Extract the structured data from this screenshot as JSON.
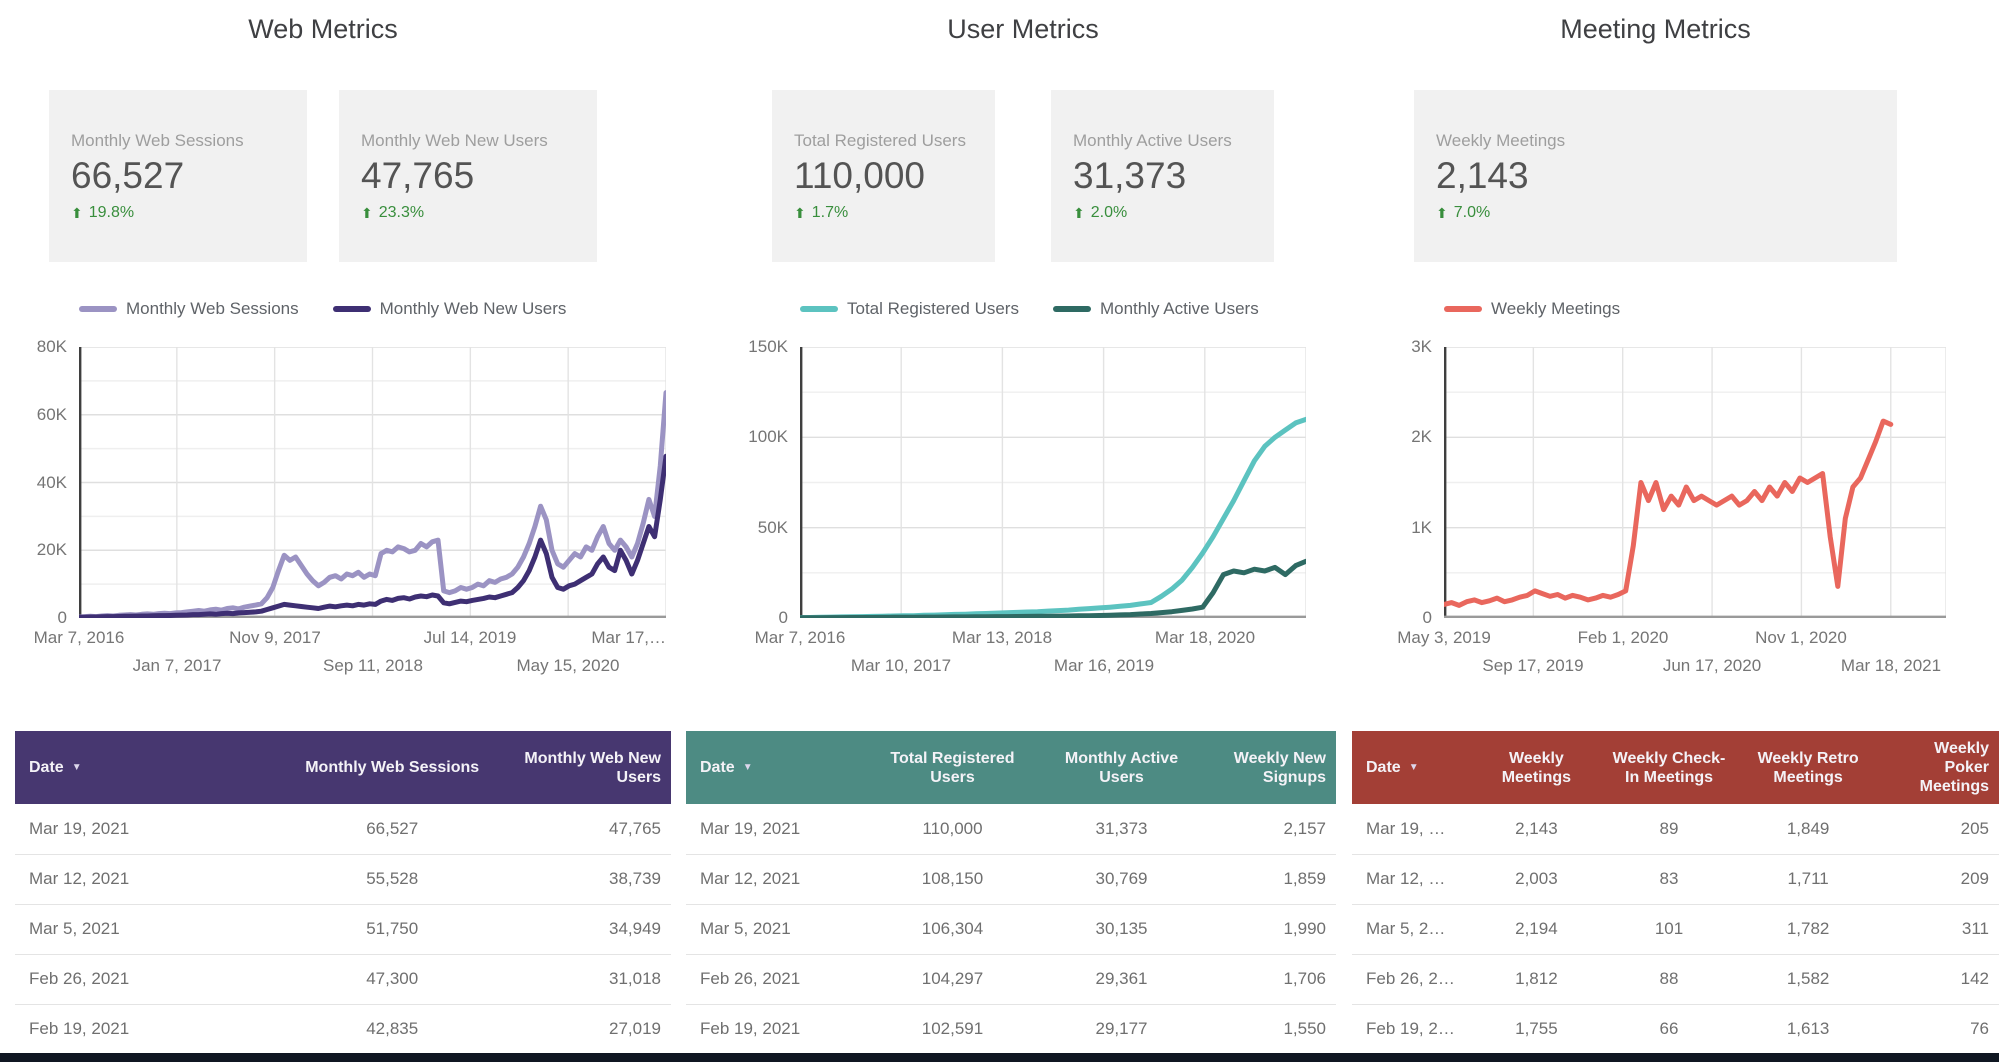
{
  "icons": {
    "arrow_up": "⬆",
    "sort_desc": "▼"
  },
  "footer_bar_color": "#101722",
  "sections": [
    {
      "title": "Web Metrics",
      "cards": [
        {
          "label": "Monthly Web Sessions",
          "value": "66,527",
          "delta": "19.8%"
        },
        {
          "label": "Monthly Web New Users",
          "value": "47,765",
          "delta": "23.3%"
        }
      ],
      "table": {
        "header_bg": "#473770",
        "columns": [
          "Date",
          "Monthly Web Sessions",
          "Monthly Web New Users"
        ],
        "col_widths": [
          "42%",
          "31%",
          "27%"
        ],
        "rows": [
          [
            "Mar 19, 2021",
            "66,527",
            "47,765"
          ],
          [
            "Mar 12, 2021",
            "55,528",
            "38,739"
          ],
          [
            "Mar 5, 2021",
            "51,750",
            "34,949"
          ],
          [
            "Feb 26, 2021",
            "47,300",
            "31,018"
          ],
          [
            "Feb 19, 2021",
            "42,835",
            "27,019"
          ]
        ]
      }
    },
    {
      "title": "User Metrics",
      "cards": [
        {
          "label": "Total Registered Users",
          "value": "110,000",
          "delta": "1.7%"
        },
        {
          "label": "Monthly Active Users",
          "value": "31,373",
          "delta": "2.0%"
        }
      ],
      "table": {
        "header_bg": "#4d8b83",
        "columns": [
          "Date",
          "Total Registered Users",
          "Monthly Active Users",
          "Weekly New Signups"
        ],
        "col_widths": [
          "27%",
          "28%",
          "24%",
          "21%"
        ],
        "rows": [
          [
            "Mar 19, 2021",
            "110,000",
            "31,373",
            "2,157"
          ],
          [
            "Mar 12, 2021",
            "108,150",
            "30,769",
            "1,859"
          ],
          [
            "Mar 5, 2021",
            "106,304",
            "30,135",
            "1,990"
          ],
          [
            "Feb 26, 2021",
            "104,297",
            "29,361",
            "1,706"
          ],
          [
            "Feb 19, 2021",
            "102,591",
            "29,177",
            "1,550"
          ]
        ]
      }
    },
    {
      "title": "Meeting Metrics",
      "cards": [
        {
          "label": "Weekly Meetings",
          "value": "2,143",
          "delta": "7.0%"
        }
      ],
      "table": {
        "header_bg": "#a33f36",
        "columns": [
          "Date",
          "Weekly Meetings",
          "Weekly Check-In Meetings",
          "Weekly Retro Meetings",
          "Weekly Poker Meetings"
        ],
        "col_widths": [
          "19%",
          "19%",
          "22%",
          "21%",
          "19%"
        ],
        "rows": [
          [
            "Mar 19, …",
            "2,143",
            "89",
            "1,849",
            "205"
          ],
          [
            "Mar 12, …",
            "2,003",
            "83",
            "1,711",
            "209"
          ],
          [
            "Mar 5, 2…",
            "2,194",
            "101",
            "1,782",
            "311"
          ],
          [
            "Feb 26, 2…",
            "1,812",
            "88",
            "1,582",
            "142"
          ],
          [
            "Feb 19, 2…",
            "1,755",
            "66",
            "1,613",
            "76"
          ]
        ]
      }
    }
  ],
  "chart_data": [
    {
      "type": "line",
      "title": "Web Metrics",
      "xlabel": "",
      "ylabel": "",
      "ymax": 80000,
      "y_minor_step": 10000,
      "yticks": [
        {
          "v": 0,
          "label": "0"
        },
        {
          "v": 20000,
          "label": "20K"
        },
        {
          "v": 40000,
          "label": "40K"
        },
        {
          "v": 60000,
          "label": "60K"
        },
        {
          "v": 80000,
          "label": "80K"
        }
      ],
      "x_end": 1,
      "grid_extra": [],
      "xticks": [
        {
          "f": 0,
          "label": "Mar 7, 2016",
          "row": 0
        },
        {
          "f": 0.1667,
          "label": "Jan 7, 2017",
          "row": 1
        },
        {
          "f": 0.3333,
          "label": "Nov 9, 2017",
          "row": 0
        },
        {
          "f": 0.5,
          "label": "Sep 11, 2018",
          "row": 1
        },
        {
          "f": 0.6667,
          "label": "Jul 14, 2019",
          "row": 0
        },
        {
          "f": 0.8333,
          "label": "May 15, 2020",
          "row": 1
        },
        {
          "f": 1,
          "label": "Mar 17,…",
          "row": 0,
          "align": "end"
        }
      ],
      "series": [
        {
          "name": "Monthly Web Sessions",
          "color": "#9b93c3",
          "values": [
            300,
            400,
            500,
            400,
            600,
            700,
            600,
            800,
            900,
            1000,
            900,
            1100,
            1200,
            1100,
            1300,
            1400,
            1300,
            1500,
            1600,
            1800,
            2000,
            2200,
            2000,
            2400,
            2600,
            2300,
            2800,
            3000,
            2700,
            3200,
            3500,
            3800,
            4200,
            6000,
            9000,
            14000,
            18500,
            17000,
            18000,
            15500,
            13000,
            11000,
            9500,
            10500,
            12000,
            12500,
            11500,
            13000,
            12500,
            13500,
            12000,
            13000,
            12500,
            19000,
            20000,
            19500,
            21000,
            20500,
            19500,
            20000,
            22000,
            21000,
            22500,
            23000,
            8000,
            7500,
            8000,
            9000,
            8500,
            9000,
            10000,
            9500,
            11000,
            10500,
            11500,
            12000,
            13000,
            15000,
            18000,
            22000,
            27000,
            33000,
            29000,
            20000,
            16000,
            15000,
            17000,
            19000,
            18000,
            21000,
            20000,
            24000,
            27000,
            22000,
            20000,
            23000,
            21000,
            18000,
            22000,
            28000,
            35000,
            30000,
            45000,
            66527
          ]
        },
        {
          "name": "Monthly Web New Users",
          "color": "#3e2f73",
          "values": [
            200,
            250,
            300,
            300,
            350,
            400,
            400,
            450,
            500,
            500,
            550,
            600,
            600,
            650,
            700,
            700,
            750,
            800,
            850,
            900,
            1000,
            1000,
            1100,
            1200,
            1100,
            1300,
            1400,
            1300,
            1500,
            1600,
            1700,
            1800,
            2000,
            2500,
            3000,
            3500,
            4000,
            3800,
            3600,
            3400,
            3200,
            3000,
            2800,
            3200,
            3500,
            3300,
            3600,
            3800,
            3600,
            4000,
            3800,
            4200,
            4000,
            5000,
            5500,
            5200,
            5800,
            6000,
            5600,
            6200,
            6500,
            6300,
            6800,
            6500,
            4500,
            4200,
            4600,
            5000,
            4800,
            5200,
            5500,
            5800,
            6200,
            6000,
            6500,
            7000,
            7500,
            9000,
            11000,
            14000,
            18000,
            23000,
            19000,
            12000,
            9000,
            8500,
            9500,
            10000,
            11000,
            12000,
            13000,
            16000,
            18000,
            15000,
            14000,
            20000,
            17000,
            13000,
            17000,
            22000,
            27000,
            24000,
            35000,
            47765
          ]
        }
      ]
    },
    {
      "type": "line",
      "title": "User Metrics",
      "xlabel": "",
      "ylabel": "",
      "ymax": 150000,
      "y_minor_step": 25000,
      "yticks": [
        {
          "v": 0,
          "label": "0"
        },
        {
          "v": 50000,
          "label": "50K"
        },
        {
          "v": 100000,
          "label": "100K"
        },
        {
          "v": 150000,
          "label": "150K"
        }
      ],
      "x_end": 1,
      "grid_extra": [
        1
      ],
      "xticks": [
        {
          "f": 0,
          "label": "Mar 7, 2016",
          "row": 0
        },
        {
          "f": 0.2,
          "label": "Mar 10, 2017",
          "row": 1
        },
        {
          "f": 0.4,
          "label": "Mar 13, 2018",
          "row": 0
        },
        {
          "f": 0.6,
          "label": "Mar 16, 2019",
          "row": 1
        },
        {
          "f": 0.8,
          "label": "Mar 18, 2020",
          "row": 0
        }
      ],
      "series": [
        {
          "name": "Total Registered Users",
          "color": "#5cc3c0",
          "values": [
            200,
            300,
            400,
            500,
            600,
            700,
            800,
            900,
            1000,
            1100,
            1200,
            1300,
            1500,
            1600,
            1800,
            2000,
            2100,
            2300,
            2500,
            2700,
            2900,
            3100,
            3300,
            3500,
            3800,
            4100,
            4400,
            4800,
            5200,
            5600,
            6000,
            6500,
            7000,
            7800,
            8600,
            12000,
            16000,
            21000,
            28000,
            36000,
            45000,
            55000,
            65000,
            76000,
            87000,
            95000,
            100000,
            104000,
            108000,
            110000
          ]
        },
        {
          "name": "Monthly Active Users",
          "color": "#2e6a63",
          "values": [
            100,
            100,
            150,
            200,
            200,
            250,
            300,
            300,
            350,
            400,
            400,
            450,
            500,
            500,
            550,
            600,
            600,
            650,
            700,
            750,
            800,
            850,
            900,
            950,
            1000,
            1050,
            1100,
            1200,
            1300,
            1400,
            1500,
            1700,
            1900,
            2200,
            2500,
            3000,
            3500,
            4200,
            5000,
            6000,
            14000,
            24000,
            26000,
            25000,
            27000,
            26000,
            28000,
            24000,
            29000,
            31373
          ]
        }
      ]
    },
    {
      "type": "line",
      "title": "Meeting Metrics",
      "xlabel": "",
      "ylabel": "",
      "ymax": 3000,
      "y_minor_step": 500,
      "yticks": [
        {
          "v": 0,
          "label": "0"
        },
        {
          "v": 1000,
          "label": "1K"
        },
        {
          "v": 2000,
          "label": "2K"
        },
        {
          "v": 3000,
          "label": "3K"
        }
      ],
      "x_end": 0.89,
      "grid_extra": [
        1
      ],
      "xticks": [
        {
          "f": 0,
          "label": "May 3, 2019",
          "row": 0
        },
        {
          "f": 0.178,
          "label": "Sep 17, 2019",
          "row": 1
        },
        {
          "f": 0.356,
          "label": "Feb 1, 2020",
          "row": 0
        },
        {
          "f": 0.534,
          "label": "Jun 17, 2020",
          "row": 1
        },
        {
          "f": 0.712,
          "label": "Nov 1, 2020",
          "row": 0
        },
        {
          "f": 0.89,
          "label": "Mar 18, 2021",
          "row": 1
        }
      ],
      "series": [
        {
          "name": "Weekly Meetings",
          "color": "#e9675d",
          "values": [
            150,
            170,
            140,
            180,
            200,
            170,
            190,
            220,
            180,
            200,
            230,
            250,
            300,
            270,
            240,
            260,
            220,
            250,
            230,
            200,
            220,
            250,
            230,
            260,
            300,
            800,
            1500,
            1300,
            1500,
            1200,
            1350,
            1250,
            1450,
            1300,
            1350,
            1300,
            1250,
            1300,
            1350,
            1250,
            1300,
            1400,
            1300,
            1450,
            1350,
            1500,
            1400,
            1550,
            1500,
            1550,
            1600,
            900,
            350,
            1100,
            1450,
            1550,
            1750,
            1950,
            2180,
            2143
          ]
        }
      ]
    }
  ]
}
